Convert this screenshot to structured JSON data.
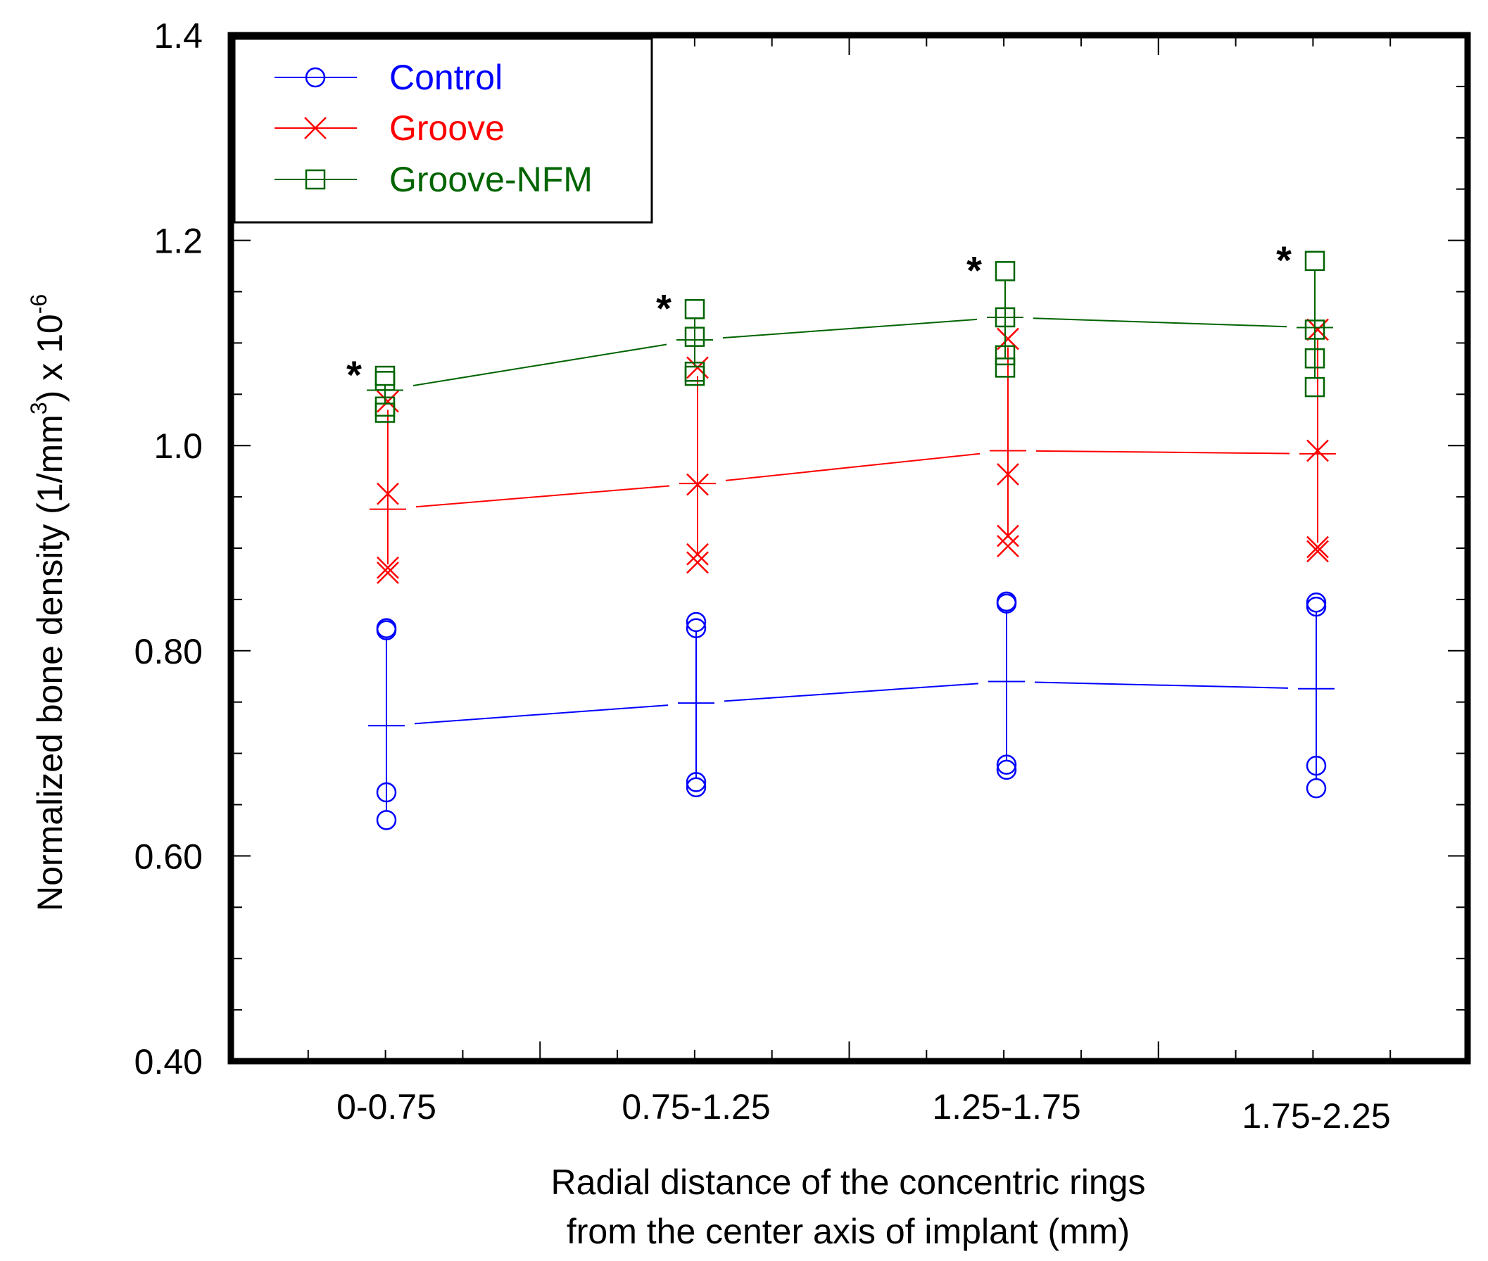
{
  "chart_data": {
    "type": "scatter",
    "xlabel_lines": [
      "Radial distance of the concentric rings",
      "from the center axis of implant (mm)"
    ],
    "ylabel": "Normalized bone density (1/mm",
    "ylabel_sup1": "3",
    "ylabel_mid": ") x 10",
    "ylabel_sup2": "-6",
    "categories": [
      "0-0.75",
      "0.75-1.25",
      "1.25-1.75",
      "1.75-2.25"
    ],
    "ylim": [
      0.4,
      1.4
    ],
    "yticks": [
      {
        "value": 0.4,
        "label": "0.40"
      },
      {
        "value": 0.6,
        "label": "0.60"
      },
      {
        "value": 0.8,
        "label": "0.80"
      },
      {
        "value": 1.0,
        "label": "1.0"
      },
      {
        "value": 1.2,
        "label": "1.2"
      },
      {
        "value": 1.4,
        "label": "1.4"
      }
    ],
    "legend_position": "top-left",
    "significance_marker": "*",
    "series": [
      {
        "name": "Control",
        "color": "#0000ff",
        "marker": "circle",
        "mean": [
          0.727,
          0.749,
          0.77,
          0.763
        ],
        "points": [
          [
            0.82,
            0.822,
            0.662,
            0.635
          ],
          [
            0.828,
            0.822,
            0.672,
            0.667
          ],
          [
            0.848,
            0.846,
            0.689,
            0.684
          ],
          [
            0.847,
            0.843,
            0.688,
            0.666
          ]
        ]
      },
      {
        "name": "Groove",
        "color": "#ff0000",
        "marker": "x",
        "mean": [
          0.938,
          0.963,
          0.995,
          0.992
        ],
        "points": [
          [
            1.043,
            0.953,
            0.881,
            0.876
          ],
          [
            1.076,
            0.962,
            0.894,
            0.886
          ],
          [
            1.104,
            0.972,
            0.912,
            0.902
          ],
          [
            1.113,
            0.995,
            0.901,
            0.897
          ]
        ]
      },
      {
        "name": "Groove-NFM",
        "color": "#006400",
        "marker": "square",
        "mean": [
          1.054,
          1.103,
          1.125,
          1.115
        ],
        "points": [
          [
            1.068,
            1.063,
            1.038,
            1.032
          ],
          [
            1.133,
            1.106,
            1.072,
            1.068
          ],
          [
            1.17,
            1.125,
            1.088,
            1.076
          ],
          [
            1.18,
            1.113,
            1.085,
            1.057
          ]
        ]
      }
    ]
  }
}
